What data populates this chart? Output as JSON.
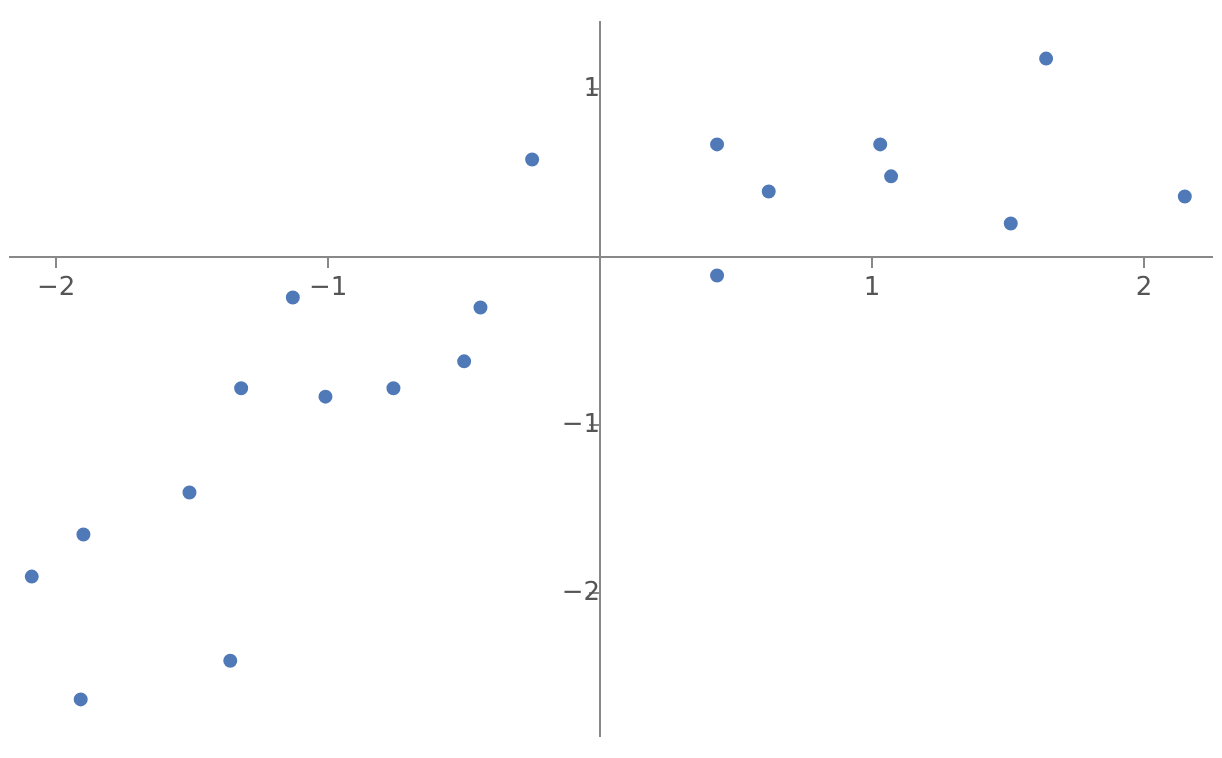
{
  "chart_data": {
    "type": "scatter",
    "marker": "circle",
    "grid": false,
    "legend": false,
    "xlim": [
      -2.17,
      2.25
    ],
    "ylim": [
      -2.85,
      1.4
    ],
    "xticks": [
      {
        "value": -2,
        "label": "−2"
      },
      {
        "value": -1,
        "label": "−1"
      },
      1,
      2
    ],
    "yticks": [
      {
        "value": -2,
        "label": "−2"
      },
      {
        "value": -1,
        "label": "−1"
      },
      1
    ],
    "series": [
      {
        "color": "#5079b8",
        "x": [
          -0.25,
          0.43,
          0.62,
          1.03,
          1.07,
          1.51,
          1.64,
          2.15,
          0.43,
          -1.13,
          -0.44,
          -1.32,
          -1.01,
          -0.76,
          -0.5,
          -1.51,
          -1.9,
          -2.09,
          -1.91,
          -1.36
        ],
        "values": [
          0.58,
          0.67,
          0.39,
          0.67,
          0.48,
          0.2,
          1.18,
          0.36,
          -0.11,
          -0.24,
          -0.3,
          -0.78,
          -0.83,
          -0.78,
          -0.62,
          -1.4,
          -1.65,
          -1.9,
          -2.63,
          -2.4
        ]
      }
    ]
  }
}
